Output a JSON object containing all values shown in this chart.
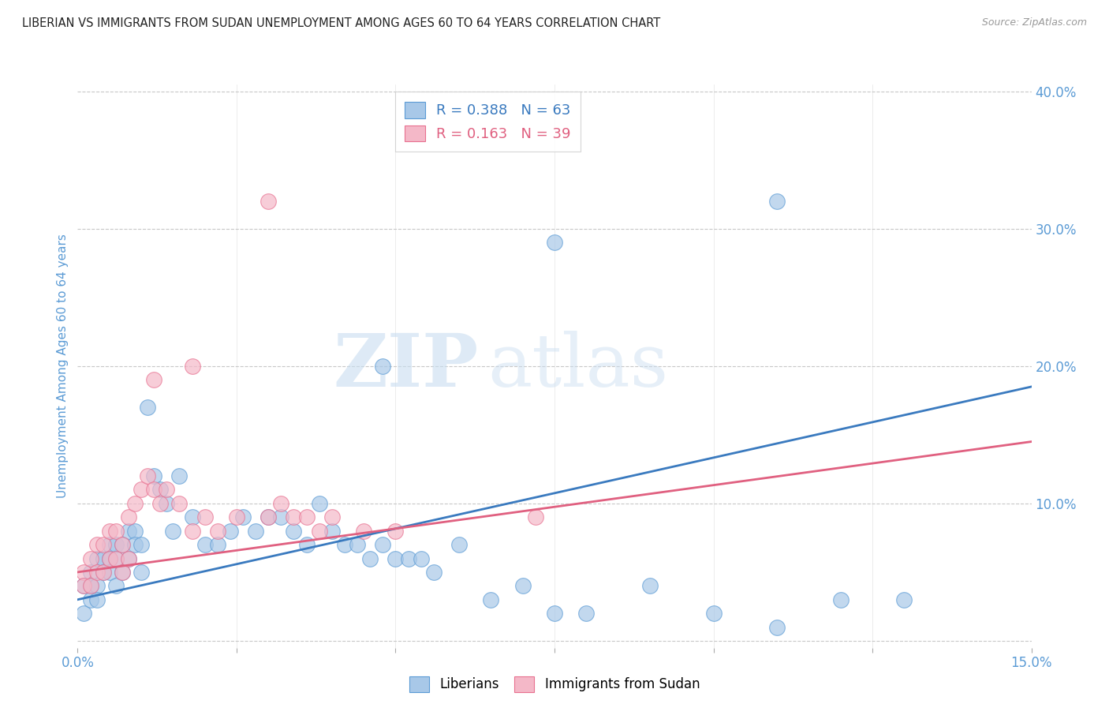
{
  "title": "LIBERIAN VS IMMIGRANTS FROM SUDAN UNEMPLOYMENT AMONG AGES 60 TO 64 YEARS CORRELATION CHART",
  "source": "Source: ZipAtlas.com",
  "ylabel": "Unemployment Among Ages 60 to 64 years",
  "xlim": [
    0.0,
    0.15
  ],
  "ylim": [
    -0.005,
    0.405
  ],
  "xticks": [
    0.0,
    0.025,
    0.05,
    0.075,
    0.1,
    0.125,
    0.15
  ],
  "xticklabels": [
    "0.0%",
    "",
    "",
    "",
    "",
    "",
    "15.0%"
  ],
  "yticks_right": [
    0.0,
    0.1,
    0.2,
    0.3,
    0.4
  ],
  "yticklabels_right": [
    "",
    "10.0%",
    "20.0%",
    "30.0%",
    "40.0%"
  ],
  "blue_color": "#a8c8e8",
  "pink_color": "#f4b8c8",
  "blue_edge_color": "#5b9bd5",
  "pink_edge_color": "#e87090",
  "blue_line_color": "#3a7abf",
  "pink_line_color": "#e06080",
  "blue_R": 0.388,
  "blue_N": 63,
  "pink_R": 0.163,
  "pink_N": 39,
  "watermark_zip": "ZIP",
  "watermark_atlas": "atlas",
  "title_color": "#222222",
  "axis_color": "#5b9bd5",
  "grid_color": "#c8c8c8",
  "blue_scatter_x": [
    0.001,
    0.001,
    0.002,
    0.002,
    0.002,
    0.003,
    0.003,
    0.003,
    0.004,
    0.004,
    0.005,
    0.005,
    0.005,
    0.006,
    0.006,
    0.006,
    0.007,
    0.007,
    0.008,
    0.008,
    0.009,
    0.009,
    0.01,
    0.01,
    0.011,
    0.012,
    0.013,
    0.014,
    0.015,
    0.016,
    0.018,
    0.02,
    0.022,
    0.024,
    0.026,
    0.028,
    0.03,
    0.032,
    0.034,
    0.036,
    0.038,
    0.04,
    0.042,
    0.044,
    0.046,
    0.048,
    0.05,
    0.052,
    0.054,
    0.056,
    0.06,
    0.065,
    0.07,
    0.075,
    0.08,
    0.09,
    0.1,
    0.11,
    0.12,
    0.13,
    0.048,
    0.075,
    0.11
  ],
  "blue_scatter_y": [
    0.04,
    0.02,
    0.05,
    0.04,
    0.03,
    0.06,
    0.04,
    0.03,
    0.06,
    0.05,
    0.07,
    0.06,
    0.05,
    0.07,
    0.06,
    0.04,
    0.07,
    0.05,
    0.08,
    0.06,
    0.08,
    0.07,
    0.07,
    0.05,
    0.17,
    0.12,
    0.11,
    0.1,
    0.08,
    0.12,
    0.09,
    0.07,
    0.07,
    0.08,
    0.09,
    0.08,
    0.09,
    0.09,
    0.08,
    0.07,
    0.1,
    0.08,
    0.07,
    0.07,
    0.06,
    0.07,
    0.06,
    0.06,
    0.06,
    0.05,
    0.07,
    0.03,
    0.04,
    0.02,
    0.02,
    0.04,
    0.02,
    0.01,
    0.03,
    0.03,
    0.2,
    0.29,
    0.32
  ],
  "pink_scatter_x": [
    0.001,
    0.001,
    0.002,
    0.002,
    0.003,
    0.003,
    0.004,
    0.004,
    0.005,
    0.005,
    0.006,
    0.006,
    0.007,
    0.007,
    0.008,
    0.008,
    0.009,
    0.01,
    0.011,
    0.012,
    0.013,
    0.014,
    0.016,
    0.018,
    0.02,
    0.022,
    0.025,
    0.03,
    0.032,
    0.034,
    0.036,
    0.038,
    0.04,
    0.045,
    0.05,
    0.072,
    0.012,
    0.018,
    0.03
  ],
  "pink_scatter_y": [
    0.05,
    0.04,
    0.06,
    0.04,
    0.07,
    0.05,
    0.07,
    0.05,
    0.08,
    0.06,
    0.08,
    0.06,
    0.07,
    0.05,
    0.09,
    0.06,
    0.1,
    0.11,
    0.12,
    0.11,
    0.1,
    0.11,
    0.1,
    0.08,
    0.09,
    0.08,
    0.09,
    0.09,
    0.1,
    0.09,
    0.09,
    0.08,
    0.09,
    0.08,
    0.08,
    0.09,
    0.19,
    0.2,
    0.32
  ],
  "blue_line_x": [
    0.0,
    0.15
  ],
  "blue_line_y": [
    0.03,
    0.185
  ],
  "pink_line_x": [
    0.0,
    0.15
  ],
  "pink_line_y": [
    0.05,
    0.145
  ]
}
